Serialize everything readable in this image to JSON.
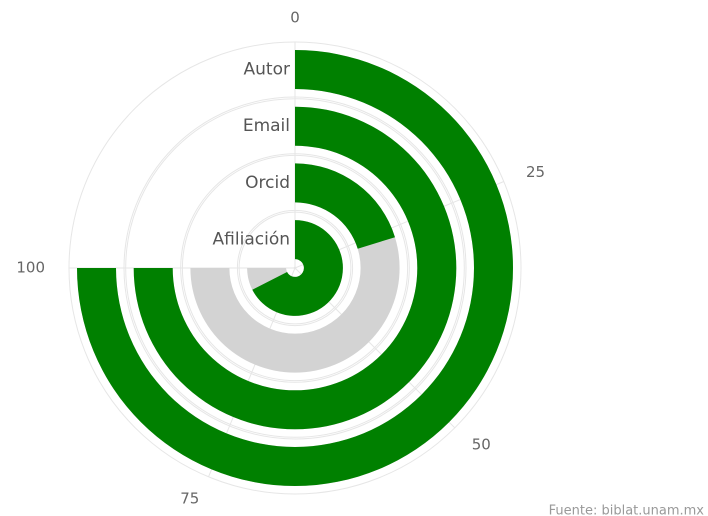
{
  "chart_data": {
    "type": "radialbar",
    "categories": [
      "Autor",
      "Email",
      "Orcid",
      "Afiliación"
    ],
    "values": [
      100,
      100,
      27,
      90
    ],
    "color": "#008000",
    "track_color": "#d3d3d3",
    "ylim": [
      0,
      100
    ],
    "yticks": [
      0,
      25,
      50,
      75,
      100
    ],
    "credits": "Fuente: biblat.unam.mx"
  }
}
